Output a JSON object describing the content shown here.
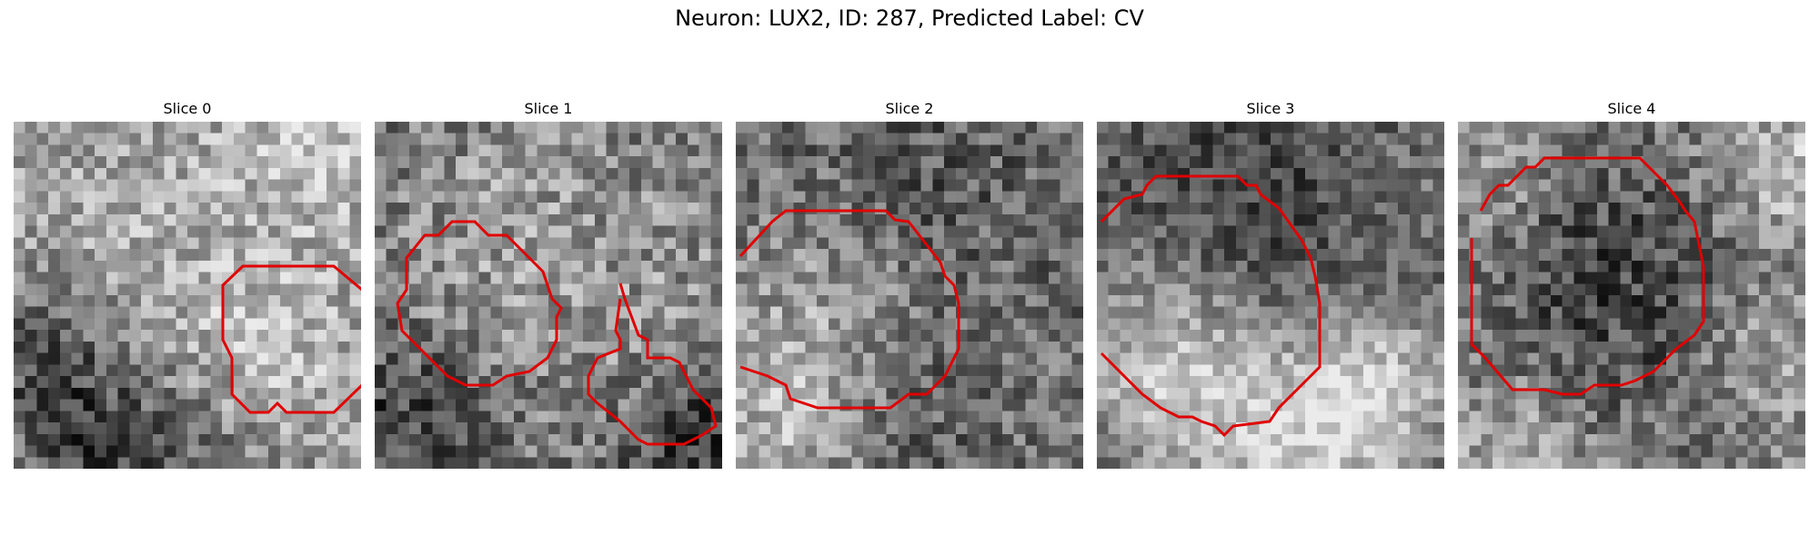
{
  "title": "Neuron: LUX2, ID: 287, Predicted Label: CV",
  "contour_color": "#e00000",
  "panels": [
    {
      "label": "Slice 0"
    },
    {
      "label": "Slice 1"
    },
    {
      "label": "Slice 2"
    },
    {
      "label": "Slice 3"
    },
    {
      "label": "Slice 4"
    }
  ]
}
